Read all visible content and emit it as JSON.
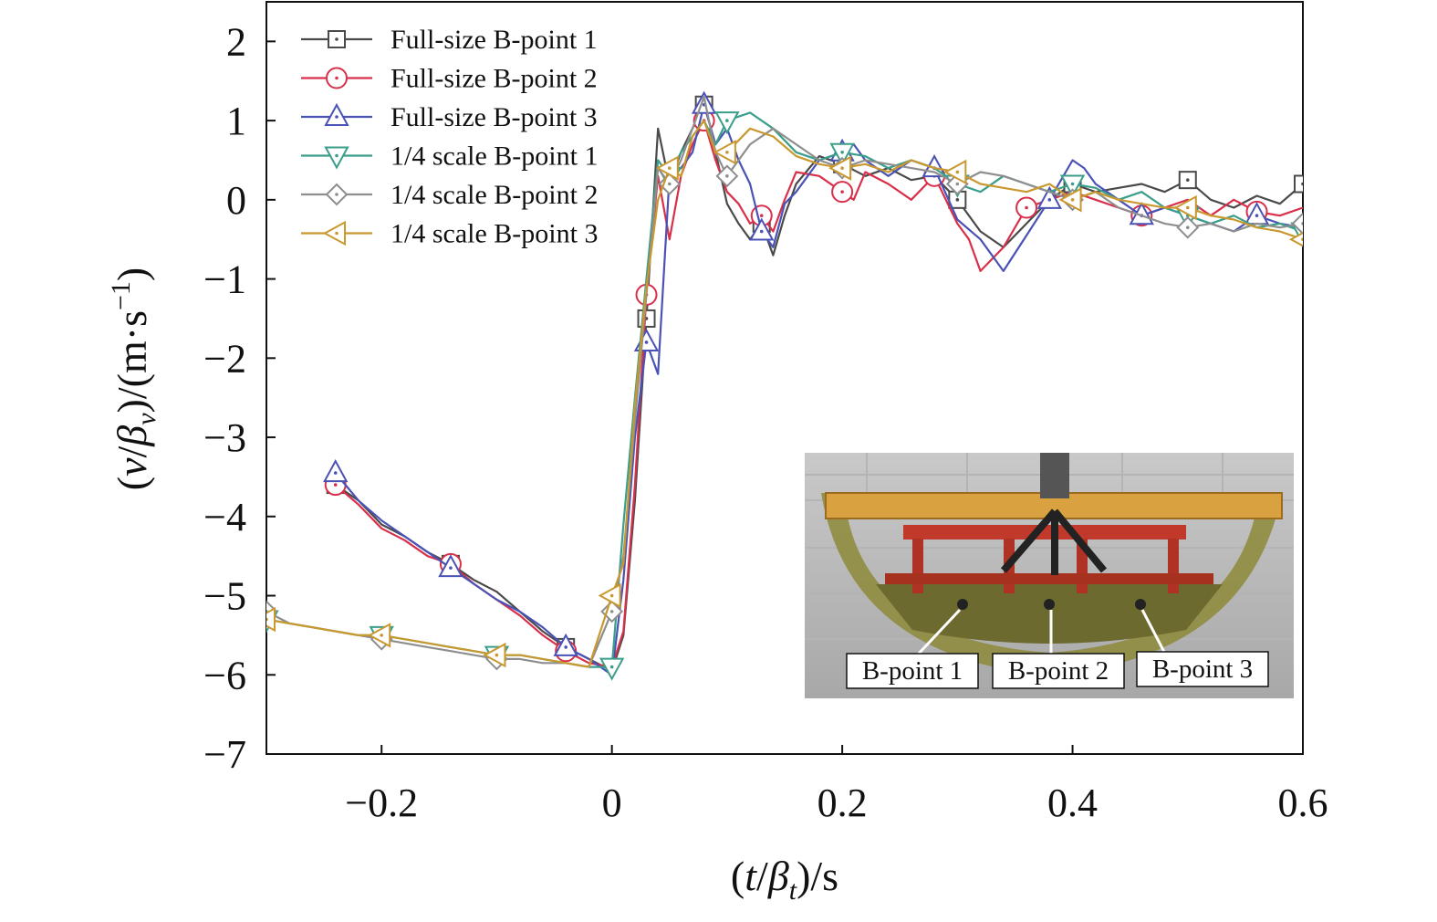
{
  "chart_data": {
    "type": "line",
    "xlabel": "(t/βt)/s",
    "ylabel": "(v/βv)/(m·s−1)",
    "xlim": [
      -0.3,
      0.6
    ],
    "ylim": [
      -7,
      2.5
    ],
    "xticks": [
      -0.2,
      0,
      0.2,
      0.4,
      0.6
    ],
    "xtick_labels": [
      "−0.2",
      "0",
      "0.2",
      "0.4",
      "0.6"
    ],
    "yticks": [
      2,
      1,
      0,
      -1,
      -2,
      -3,
      -4,
      -5,
      -6,
      -7
    ],
    "ytick_labels": [
      "2",
      "1",
      "0",
      "−1",
      "−2",
      "−3",
      "−4",
      "−5",
      "−6",
      "−7"
    ],
    "legend_position": "top-left",
    "grid": false,
    "series": [
      {
        "name": "Full-size B-point 1",
        "color": "#4a4a4a",
        "marker": "square",
        "x": [
          -0.24,
          -0.22,
          -0.2,
          -0.18,
          -0.16,
          -0.14,
          -0.12,
          -0.1,
          -0.08,
          -0.06,
          -0.04,
          -0.02,
          0.0,
          0.01,
          0.02,
          0.03,
          0.04,
          0.05,
          0.06,
          0.07,
          0.08,
          0.09,
          0.1,
          0.11,
          0.12,
          0.13,
          0.14,
          0.15,
          0.16,
          0.18,
          0.2,
          0.22,
          0.24,
          0.26,
          0.28,
          0.3,
          0.32,
          0.34,
          0.36,
          0.38,
          0.4,
          0.42,
          0.44,
          0.46,
          0.48,
          0.5,
          0.52,
          0.54,
          0.56,
          0.58,
          0.6
        ],
        "y": [
          -3.6,
          -3.8,
          -4.1,
          -4.25,
          -4.45,
          -4.6,
          -4.8,
          -4.95,
          -5.2,
          -5.45,
          -5.65,
          -5.8,
          -5.95,
          -5.5,
          -3.8,
          -1.5,
          0.9,
          0.2,
          0.6,
          0.9,
          1.2,
          0.6,
          -0.05,
          -0.3,
          -0.5,
          -0.3,
          -0.7,
          -0.2,
          0.2,
          0.55,
          0.45,
          0.3,
          0.4,
          0.25,
          0.3,
          0.0,
          -0.4,
          -0.6,
          -0.3,
          0.0,
          0.2,
          0.1,
          0.15,
          0.2,
          0.1,
          0.25,
          0.0,
          -0.1,
          0.05,
          -0.05,
          0.2
        ]
      },
      {
        "name": "Full-size B-point 2",
        "color": "#d8304a",
        "marker": "circle",
        "x": [
          -0.24,
          -0.22,
          -0.2,
          -0.18,
          -0.16,
          -0.14,
          -0.12,
          -0.1,
          -0.08,
          -0.06,
          -0.04,
          -0.02,
          0.0,
          0.01,
          0.02,
          0.03,
          0.04,
          0.05,
          0.06,
          0.07,
          0.08,
          0.09,
          0.1,
          0.11,
          0.12,
          0.13,
          0.14,
          0.15,
          0.16,
          0.18,
          0.2,
          0.21,
          0.22,
          0.24,
          0.26,
          0.28,
          0.3,
          0.31,
          0.32,
          0.34,
          0.36,
          0.38,
          0.4,
          0.42,
          0.44,
          0.46,
          0.48,
          0.5,
          0.52,
          0.54,
          0.56,
          0.58,
          0.6
        ],
        "y": [
          -3.6,
          -3.85,
          -4.15,
          -4.3,
          -4.5,
          -4.6,
          -4.85,
          -5.05,
          -5.25,
          -5.5,
          -5.7,
          -5.85,
          -5.9,
          -5.45,
          -3.6,
          -1.2,
          0.3,
          -0.5,
          0.3,
          0.7,
          1.0,
          0.5,
          0.1,
          -0.05,
          -0.3,
          -0.2,
          -0.4,
          0.0,
          0.35,
          0.3,
          0.1,
          0.0,
          0.35,
          0.2,
          0.0,
          0.3,
          -0.3,
          -0.5,
          -0.9,
          -0.6,
          -0.1,
          0.0,
          0.1,
          0.0,
          -0.1,
          -0.2,
          -0.1,
          0.0,
          -0.2,
          0.0,
          -0.15,
          -0.2,
          -0.1
        ]
      },
      {
        "name": "Full-size B-point 3",
        "color": "#4a52b5",
        "marker": "triangle-up",
        "x": [
          -0.24,
          -0.22,
          -0.2,
          -0.18,
          -0.16,
          -0.14,
          -0.12,
          -0.1,
          -0.08,
          -0.06,
          -0.04,
          -0.02,
          0.0,
          0.01,
          0.02,
          0.03,
          0.04,
          0.05,
          0.06,
          0.07,
          0.08,
          0.09,
          0.1,
          0.11,
          0.12,
          0.13,
          0.14,
          0.15,
          0.16,
          0.18,
          0.2,
          0.21,
          0.22,
          0.24,
          0.26,
          0.28,
          0.3,
          0.32,
          0.34,
          0.36,
          0.38,
          0.4,
          0.41,
          0.42,
          0.44,
          0.46,
          0.48,
          0.5,
          0.52,
          0.54,
          0.56,
          0.58,
          0.6
        ],
        "y": [
          -3.45,
          -3.8,
          -4.05,
          -4.25,
          -4.45,
          -4.65,
          -4.85,
          -5.05,
          -5.2,
          -5.4,
          -5.65,
          -5.8,
          -6.0,
          -4.8,
          -3.0,
          -1.8,
          -2.2,
          0.3,
          0.4,
          0.6,
          1.2,
          0.7,
          0.9,
          0.5,
          0.2,
          -0.4,
          -0.6,
          -0.05,
          0.1,
          0.5,
          0.6,
          0.7,
          0.5,
          0.3,
          0.5,
          0.4,
          -0.25,
          -0.5,
          -0.9,
          -0.45,
          0.0,
          0.5,
          0.4,
          0.2,
          0.0,
          -0.2,
          -0.1,
          -0.2,
          -0.3,
          -0.4,
          -0.2,
          -0.3,
          -0.35
        ]
      },
      {
        "name": "1/4 scale B-point 1",
        "color": "#3a9e8a",
        "marker": "triangle-down",
        "x": [
          -0.3,
          -0.28,
          -0.26,
          -0.24,
          -0.22,
          -0.2,
          -0.18,
          -0.16,
          -0.14,
          -0.12,
          -0.1,
          -0.08,
          -0.06,
          -0.04,
          -0.02,
          0.0,
          0.01,
          0.02,
          0.03,
          0.04,
          0.05,
          0.06,
          0.07,
          0.08,
          0.09,
          0.1,
          0.12,
          0.14,
          0.16,
          0.18,
          0.2,
          0.22,
          0.24,
          0.26,
          0.28,
          0.3,
          0.32,
          0.34,
          0.36,
          0.38,
          0.4,
          0.42,
          0.44,
          0.46,
          0.48,
          0.5,
          0.52,
          0.54,
          0.56,
          0.58,
          0.6
        ],
        "y": [
          -5.3,
          -5.35,
          -5.4,
          -5.45,
          -5.5,
          -5.5,
          -5.55,
          -5.6,
          -5.65,
          -5.7,
          -5.75,
          -5.75,
          -5.8,
          -5.85,
          -5.9,
          -5.9,
          -4.1,
          -2.5,
          -1.0,
          0.5,
          0.3,
          0.6,
          0.8,
          1.0,
          0.7,
          1.0,
          1.1,
          0.9,
          0.6,
          0.5,
          0.6,
          0.55,
          0.4,
          0.5,
          0.4,
          0.2,
          0.1,
          0.3,
          0.2,
          0.1,
          0.2,
          0.15,
          0.0,
          0.1,
          -0.1,
          -0.2,
          -0.3,
          -0.2,
          -0.35,
          -0.3,
          -0.4
        ]
      },
      {
        "name": "1/4 scale B-point 2",
        "color": "#8e8e8e",
        "marker": "diamond",
        "x": [
          -0.3,
          -0.28,
          -0.26,
          -0.24,
          -0.22,
          -0.2,
          -0.18,
          -0.16,
          -0.14,
          -0.12,
          -0.1,
          -0.08,
          -0.06,
          -0.04,
          -0.02,
          0.0,
          0.01,
          0.02,
          0.03,
          0.04,
          0.05,
          0.06,
          0.07,
          0.08,
          0.09,
          0.1,
          0.12,
          0.14,
          0.16,
          0.18,
          0.2,
          0.22,
          0.24,
          0.26,
          0.28,
          0.3,
          0.32,
          0.34,
          0.36,
          0.38,
          0.4,
          0.42,
          0.44,
          0.46,
          0.48,
          0.5,
          0.52,
          0.54,
          0.56,
          0.58,
          0.6
        ],
        "y": [
          -5.2,
          -5.35,
          -5.4,
          -5.45,
          -5.5,
          -5.55,
          -5.6,
          -5.65,
          -5.7,
          -5.75,
          -5.8,
          -5.8,
          -5.85,
          -5.85,
          -5.9,
          -5.2,
          -4.5,
          -2.8,
          -1.2,
          0.4,
          0.2,
          0.5,
          0.9,
          1.3,
          0.6,
          0.3,
          0.7,
          0.9,
          0.7,
          0.5,
          0.4,
          0.5,
          0.45,
          0.4,
          0.35,
          0.2,
          0.35,
          0.3,
          0.2,
          0.1,
          0.0,
          0.1,
          -0.1,
          -0.2,
          -0.3,
          -0.35,
          -0.3,
          -0.4,
          -0.3,
          -0.35,
          -0.3
        ]
      },
      {
        "name": "1/4 scale B-point 3",
        "color": "#c9982e",
        "marker": "triangle-left",
        "x": [
          -0.3,
          -0.28,
          -0.26,
          -0.24,
          -0.22,
          -0.2,
          -0.18,
          -0.16,
          -0.14,
          -0.12,
          -0.1,
          -0.08,
          -0.06,
          -0.04,
          -0.02,
          0.0,
          0.01,
          0.02,
          0.03,
          0.04,
          0.05,
          0.06,
          0.07,
          0.08,
          0.09,
          0.1,
          0.12,
          0.14,
          0.16,
          0.18,
          0.2,
          0.22,
          0.24,
          0.26,
          0.28,
          0.3,
          0.32,
          0.34,
          0.36,
          0.38,
          0.4,
          0.42,
          0.44,
          0.46,
          0.48,
          0.5,
          0.52,
          0.54,
          0.56,
          0.58,
          0.6
        ],
        "y": [
          -5.3,
          -5.35,
          -5.4,
          -5.45,
          -5.5,
          -5.5,
          -5.55,
          -5.6,
          -5.65,
          -5.7,
          -5.75,
          -5.75,
          -5.8,
          -5.85,
          -5.9,
          -5.0,
          -4.6,
          -2.6,
          -1.1,
          0.0,
          0.4,
          0.3,
          0.8,
          1.0,
          0.6,
          0.6,
          0.9,
          0.8,
          0.55,
          0.45,
          0.4,
          0.45,
          0.35,
          0.5,
          0.4,
          0.35,
          0.2,
          0.15,
          0.1,
          0.2,
          0.0,
          0.1,
          0.0,
          -0.05,
          -0.1,
          -0.1,
          -0.2,
          -0.25,
          -0.35,
          -0.4,
          -0.5
        ]
      }
    ]
  },
  "inset": {
    "callouts": [
      "B-point 1",
      "B-point 2",
      "B-point 3"
    ]
  }
}
